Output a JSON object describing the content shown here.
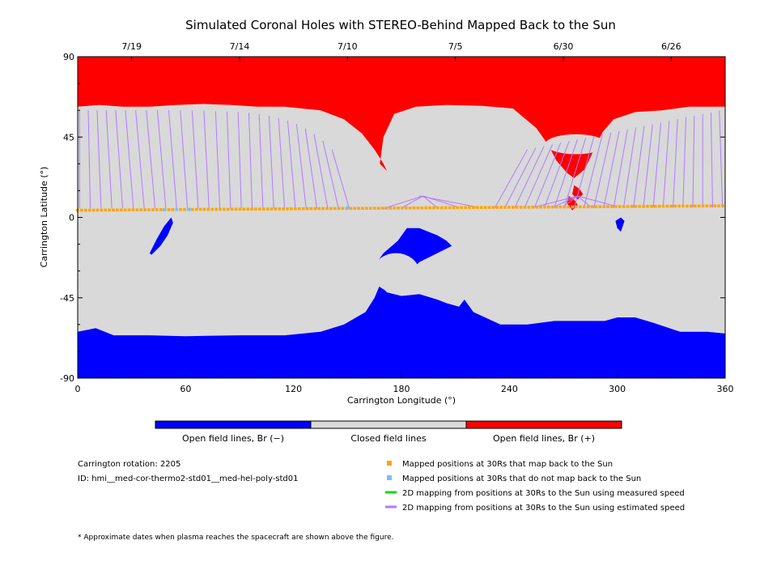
{
  "title": "Simulated Coronal Holes with STEREO-Behind Mapped Back to the Sun",
  "colors": {
    "open_negative": "#0000ff",
    "closed": "#d9d9d9",
    "open_positive": "#ff0000",
    "mapped_back": "#ffa500",
    "not_mapped_back": "#74c0ff",
    "measured_speed": "#00dd00",
    "estimated_speed": "#b27aff"
  },
  "chart_data": {
    "type": "heatmap",
    "title": "Simulated Coronal Holes with STEREO-Behind Mapped Back to the Sun",
    "xlabel": "Carrington Longitude (°)",
    "ylabel": "Carrington Latitude (°)",
    "xlim": [
      0,
      360
    ],
    "ylim": [
      -90,
      90
    ],
    "x_ticks": [
      0,
      60,
      120,
      180,
      240,
      300,
      360
    ],
    "y_ticks": [
      90,
      45,
      0,
      -45,
      -90
    ],
    "y_tick_labels": [
      "90",
      "45",
      "0",
      "-45",
      "-90"
    ],
    "top_axis_dates": [
      {
        "lon": 30,
        "label": "7/19"
      },
      {
        "lon": 90,
        "label": "7/14"
      },
      {
        "lon": 150,
        "label": "7/10"
      },
      {
        "lon": 210,
        "label": "7/5"
      },
      {
        "lon": 270,
        "label": "6/30"
      },
      {
        "lon": 330,
        "label": "6/26"
      }
    ],
    "categories": [
      "Open field lines, Br (−)",
      "Closed field lines",
      "Open field lines, Br (+)"
    ],
    "regions": {
      "north_positive_hole_boundary": [
        [
          0,
          62
        ],
        [
          12,
          63
        ],
        [
          25,
          62
        ],
        [
          40,
          62
        ],
        [
          55,
          63
        ],
        [
          70,
          63.5
        ],
        [
          85,
          63
        ],
        [
          100,
          62
        ],
        [
          115,
          62
        ],
        [
          135,
          60
        ],
        [
          148,
          55
        ],
        [
          158,
          47
        ],
        [
          165,
          38
        ],
        [
          170,
          30
        ],
        [
          172,
          26
        ],
        [
          168,
          30
        ],
        [
          170,
          45
        ],
        [
          176,
          58
        ],
        [
          188,
          62
        ],
        [
          205,
          63
        ],
        [
          225,
          62.5
        ],
        [
          242,
          61
        ],
        [
          255,
          50
        ],
        [
          262,
          40
        ],
        [
          266,
          32
        ],
        [
          272,
          25
        ],
        [
          276,
          22
        ],
        [
          282,
          27
        ],
        [
          288,
          40
        ],
        [
          292,
          48
        ],
        [
          298,
          55
        ],
        [
          310,
          59
        ],
        [
          325,
          60
        ],
        [
          340,
          62
        ],
        [
          360,
          62
        ]
      ],
      "south_negative_hole_boundary": [
        [
          0,
          -64
        ],
        [
          10,
          -62
        ],
        [
          20,
          -66
        ],
        [
          40,
          -66
        ],
        [
          60,
          -66.5
        ],
        [
          90,
          -66
        ],
        [
          115,
          -66
        ],
        [
          135,
          -64
        ],
        [
          148,
          -60
        ],
        [
          160,
          -53
        ],
        [
          165,
          -45
        ],
        [
          168,
          -38
        ],
        [
          172,
          -42
        ],
        [
          180,
          -44
        ],
        [
          190,
          -43
        ],
        [
          200,
          -46
        ],
        [
          205,
          -48
        ],
        [
          212,
          -50
        ],
        [
          215,
          -46
        ],
        [
          220,
          -53
        ],
        [
          235,
          -60
        ],
        [
          250,
          -60
        ],
        [
          265,
          -58
        ],
        [
          280,
          -58
        ],
        [
          293,
          -58
        ],
        [
          300,
          -56
        ],
        [
          310,
          -56
        ],
        [
          320,
          -59
        ],
        [
          335,
          -64
        ],
        [
          350,
          -64
        ],
        [
          360,
          -65
        ]
      ],
      "south_hole_lobe": [
        [
          165,
          -27
        ],
        [
          170,
          -20
        ],
        [
          178,
          -13
        ],
        [
          183,
          -6
        ],
        [
          190,
          -6
        ],
        [
          200,
          -10
        ],
        [
          205,
          -13
        ],
        [
          208,
          -16
        ],
        [
          200,
          -20
        ],
        [
          190,
          -25
        ],
        [
          182,
          -33
        ],
        [
          176,
          -36
        ],
        [
          170,
          -32
        ],
        [
          165,
          -27
        ]
      ],
      "small_negative_holes": [
        [
          [
            40,
            -20
          ],
          [
            44,
            -12
          ],
          [
            48,
            -5
          ],
          [
            52,
            0
          ],
          [
            53,
            -3
          ],
          [
            50,
            -10
          ],
          [
            46,
            -16
          ],
          [
            41,
            -21
          ]
        ],
        [
          [
            299,
            -2
          ],
          [
            302,
            0
          ],
          [
            304,
            -2
          ],
          [
            302,
            -8
          ],
          [
            300,
            -6
          ]
        ]
      ],
      "small_positive_islands": [
        [
          [
            276,
            18
          ],
          [
            279,
            16
          ],
          [
            281,
            13
          ],
          [
            278,
            10
          ],
          [
            275,
            13
          ]
        ],
        [
          [
            273,
            12
          ],
          [
            276,
            10
          ],
          [
            278,
            7
          ],
          [
            275,
            4
          ],
          [
            272,
            8
          ]
        ]
      ]
    },
    "series": [
      {
        "name": "Mapped positions at 30Rs that map back to the Sun",
        "marker": "square",
        "lon_range": [
          0,
          360
        ],
        "lat_range": [
          4,
          6.5
        ]
      },
      {
        "name": "Mapped positions at 30Rs that do not map back to the Sun",
        "marker": "square",
        "lon": [
          48,
          55,
          62,
          150
        ],
        "lat": [
          4.3,
          4.4,
          4.5,
          5.5
        ]
      },
      {
        "name": "2D mapping from positions at 30Rs to the Sun using measured speed",
        "lines": []
      },
      {
        "name": "2D mapping from positions at 30Rs to the Sun using estimated speed",
        "lines_note": "mapping lines from 30Rs positions near the equator to coronal hole boundaries"
      }
    ],
    "legend_position": "bottom-right"
  },
  "colorbar": {
    "labels": [
      "Open field lines, Br (−)",
      "Closed field lines",
      "Open field lines, Br (+)"
    ]
  },
  "info": {
    "rotation": "Carrington rotation: 2205",
    "id": "ID: hmi__med-cor-thermo2-std01__med-hel-poly-std01"
  },
  "legend": [
    {
      "label": "Mapped positions at 30Rs that map back to the Sun",
      "kind": "square",
      "color": "#ffa500"
    },
    {
      "label": "Mapped positions at 30Rs that do not map back to the Sun",
      "kind": "square",
      "color": "#74c0ff"
    },
    {
      "label": "2D mapping from positions at 30Rs to the Sun using measured speed",
      "kind": "line",
      "color": "#00dd00"
    },
    {
      "label": "2D mapping from positions at 30Rs to the Sun using estimated speed",
      "kind": "line",
      "color": "#b27aff"
    }
  ],
  "footnote": "* Approximate dates when plasma reaches the spacecraft are shown above the figure."
}
